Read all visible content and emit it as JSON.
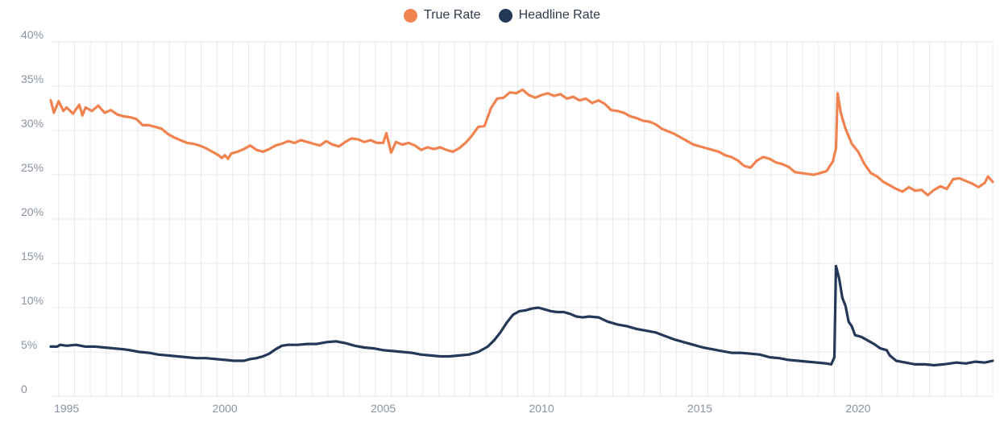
{
  "legend": {
    "true_rate": "True Rate",
    "headline_rate": "Headline Rate"
  },
  "colors": {
    "true_rate": "#f0834f",
    "headline_rate": "#253858",
    "grid": "#e6e8ec",
    "axis_text": "#8a93a1"
  },
  "chart_data": {
    "type": "line",
    "title": "",
    "xlabel": "",
    "ylabel": "",
    "x_range": [
      1994.5,
      2024.25
    ],
    "ylim": [
      0,
      40
    ],
    "grid": "on",
    "legend_position": "top-center",
    "x_ticks": [
      {
        "value": 1995,
        "label": "1995"
      },
      {
        "value": 2000,
        "label": "2000"
      },
      {
        "value": 2005,
        "label": "2005"
      },
      {
        "value": 2010,
        "label": "2010"
      },
      {
        "value": 2015,
        "label": "2015"
      },
      {
        "value": 2020,
        "label": "2020"
      }
    ],
    "y_ticks": [
      {
        "value": 0,
        "label": "0"
      },
      {
        "value": 5,
        "label": "5%"
      },
      {
        "value": 10,
        "label": "10%"
      },
      {
        "value": 15,
        "label": "15%"
      },
      {
        "value": 20,
        "label": "20%"
      },
      {
        "value": 25,
        "label": "25%"
      },
      {
        "value": 30,
        "label": "30%"
      },
      {
        "value": 35,
        "label": "35%"
      },
      {
        "value": 40,
        "label": "40%"
      }
    ],
    "series": [
      {
        "name": "True Rate",
        "color": "#f0834f",
        "points": [
          [
            1994.5,
            33.4
          ],
          [
            1994.6,
            32.0
          ],
          [
            1994.75,
            33.3
          ],
          [
            1994.9,
            32.2
          ],
          [
            1995.0,
            32.6
          ],
          [
            1995.2,
            31.9
          ],
          [
            1995.4,
            32.9
          ],
          [
            1995.5,
            31.7
          ],
          [
            1995.6,
            32.6
          ],
          [
            1995.8,
            32.2
          ],
          [
            1996.0,
            32.8
          ],
          [
            1996.2,
            32.0
          ],
          [
            1996.4,
            32.3
          ],
          [
            1996.6,
            31.8
          ],
          [
            1996.8,
            31.6
          ],
          [
            1997.0,
            31.5
          ],
          [
            1997.2,
            31.3
          ],
          [
            1997.4,
            30.6
          ],
          [
            1997.6,
            30.6
          ],
          [
            1997.8,
            30.4
          ],
          [
            1998.0,
            30.2
          ],
          [
            1998.2,
            29.6
          ],
          [
            1998.4,
            29.2
          ],
          [
            1998.6,
            28.9
          ],
          [
            1998.8,
            28.6
          ],
          [
            1999.0,
            28.5
          ],
          [
            1999.2,
            28.3
          ],
          [
            1999.4,
            28.0
          ],
          [
            1999.6,
            27.6
          ],
          [
            1999.8,
            27.2
          ],
          [
            1999.9,
            26.9
          ],
          [
            2000.0,
            27.2
          ],
          [
            2000.1,
            26.8
          ],
          [
            2000.2,
            27.4
          ],
          [
            2000.4,
            27.6
          ],
          [
            2000.6,
            27.9
          ],
          [
            2000.8,
            28.3
          ],
          [
            2001.0,
            27.8
          ],
          [
            2001.2,
            27.6
          ],
          [
            2001.4,
            27.9
          ],
          [
            2001.6,
            28.3
          ],
          [
            2001.8,
            28.5
          ],
          [
            2002.0,
            28.8
          ],
          [
            2002.2,
            28.6
          ],
          [
            2002.4,
            28.9
          ],
          [
            2002.6,
            28.7
          ],
          [
            2002.8,
            28.5
          ],
          [
            2003.0,
            28.3
          ],
          [
            2003.2,
            28.8
          ],
          [
            2003.4,
            28.4
          ],
          [
            2003.6,
            28.2
          ],
          [
            2003.8,
            28.7
          ],
          [
            2004.0,
            29.1
          ],
          [
            2004.2,
            29.0
          ],
          [
            2004.4,
            28.7
          ],
          [
            2004.6,
            28.9
          ],
          [
            2004.8,
            28.6
          ],
          [
            2005.0,
            28.6
          ],
          [
            2005.1,
            29.7
          ],
          [
            2005.25,
            27.5
          ],
          [
            2005.4,
            28.7
          ],
          [
            2005.6,
            28.4
          ],
          [
            2005.8,
            28.6
          ],
          [
            2006.0,
            28.3
          ],
          [
            2006.2,
            27.8
          ],
          [
            2006.4,
            28.1
          ],
          [
            2006.6,
            27.9
          ],
          [
            2006.8,
            28.1
          ],
          [
            2007.0,
            27.8
          ],
          [
            2007.2,
            27.6
          ],
          [
            2007.4,
            28.0
          ],
          [
            2007.6,
            28.6
          ],
          [
            2007.8,
            29.4
          ],
          [
            2008.0,
            30.4
          ],
          [
            2008.2,
            30.5
          ],
          [
            2008.4,
            32.5
          ],
          [
            2008.6,
            33.6
          ],
          [
            2008.8,
            33.7
          ],
          [
            2009.0,
            34.3
          ],
          [
            2009.2,
            34.2
          ],
          [
            2009.4,
            34.6
          ],
          [
            2009.6,
            34.0
          ],
          [
            2009.8,
            33.7
          ],
          [
            2010.0,
            34.0
          ],
          [
            2010.2,
            34.2
          ],
          [
            2010.4,
            33.9
          ],
          [
            2010.6,
            34.1
          ],
          [
            2010.8,
            33.6
          ],
          [
            2011.0,
            33.8
          ],
          [
            2011.2,
            33.4
          ],
          [
            2011.4,
            33.6
          ],
          [
            2011.6,
            33.1
          ],
          [
            2011.8,
            33.4
          ],
          [
            2012.0,
            33.0
          ],
          [
            2012.2,
            32.3
          ],
          [
            2012.4,
            32.2
          ],
          [
            2012.6,
            32.0
          ],
          [
            2012.8,
            31.6
          ],
          [
            2013.0,
            31.4
          ],
          [
            2013.2,
            31.1
          ],
          [
            2013.4,
            31.0
          ],
          [
            2013.6,
            30.7
          ],
          [
            2013.8,
            30.2
          ],
          [
            2014.0,
            29.9
          ],
          [
            2014.2,
            29.6
          ],
          [
            2014.4,
            29.2
          ],
          [
            2014.6,
            28.8
          ],
          [
            2014.8,
            28.4
          ],
          [
            2015.0,
            28.2
          ],
          [
            2015.2,
            28.0
          ],
          [
            2015.4,
            27.8
          ],
          [
            2015.6,
            27.6
          ],
          [
            2015.8,
            27.2
          ],
          [
            2016.0,
            27.0
          ],
          [
            2016.2,
            26.6
          ],
          [
            2016.4,
            26.0
          ],
          [
            2016.6,
            25.8
          ],
          [
            2016.8,
            26.6
          ],
          [
            2017.0,
            27.0
          ],
          [
            2017.2,
            26.8
          ],
          [
            2017.4,
            26.4
          ],
          [
            2017.6,
            26.2
          ],
          [
            2017.8,
            25.9
          ],
          [
            2018.0,
            25.3
          ],
          [
            2018.2,
            25.2
          ],
          [
            2018.4,
            25.1
          ],
          [
            2018.6,
            25.0
          ],
          [
            2018.8,
            25.2
          ],
          [
            2019.0,
            25.4
          ],
          [
            2019.2,
            26.5
          ],
          [
            2019.3,
            28.0
          ],
          [
            2019.35,
            34.2
          ],
          [
            2019.45,
            32.0
          ],
          [
            2019.6,
            30.2
          ],
          [
            2019.8,
            28.5
          ],
          [
            2020.0,
            27.6
          ],
          [
            2020.2,
            26.2
          ],
          [
            2020.4,
            25.2
          ],
          [
            2020.6,
            24.8
          ],
          [
            2020.8,
            24.2
          ],
          [
            2021.0,
            23.8
          ],
          [
            2021.2,
            23.4
          ],
          [
            2021.4,
            23.1
          ],
          [
            2021.6,
            23.6
          ],
          [
            2021.8,
            23.2
          ],
          [
            2022.0,
            23.3
          ],
          [
            2022.2,
            22.7
          ],
          [
            2022.4,
            23.3
          ],
          [
            2022.6,
            23.7
          ],
          [
            2022.8,
            23.4
          ],
          [
            2023.0,
            24.5
          ],
          [
            2023.2,
            24.6
          ],
          [
            2023.4,
            24.3
          ],
          [
            2023.6,
            24.0
          ],
          [
            2023.8,
            23.6
          ],
          [
            2024.0,
            24.1
          ],
          [
            2024.1,
            24.8
          ],
          [
            2024.25,
            24.2
          ]
        ]
      },
      {
        "name": "Headline Rate",
        "color": "#253858",
        "points": [
          [
            1994.5,
            5.6
          ],
          [
            1994.7,
            5.6
          ],
          [
            1994.8,
            5.8
          ],
          [
            1995.0,
            5.7
          ],
          [
            1995.3,
            5.8
          ],
          [
            1995.6,
            5.6
          ],
          [
            1995.9,
            5.6
          ],
          [
            1996.2,
            5.5
          ],
          [
            1996.5,
            5.4
          ],
          [
            1996.8,
            5.3
          ],
          [
            1997.0,
            5.2
          ],
          [
            1997.3,
            5.0
          ],
          [
            1997.6,
            4.9
          ],
          [
            1997.9,
            4.7
          ],
          [
            1998.2,
            4.6
          ],
          [
            1998.5,
            4.5
          ],
          [
            1998.8,
            4.4
          ],
          [
            1999.1,
            4.3
          ],
          [
            1999.4,
            4.3
          ],
          [
            1999.7,
            4.2
          ],
          [
            2000.0,
            4.1
          ],
          [
            2000.3,
            4.0
          ],
          [
            2000.6,
            4.0
          ],
          [
            2000.8,
            4.2
          ],
          [
            2001.0,
            4.3
          ],
          [
            2001.2,
            4.5
          ],
          [
            2001.4,
            4.8
          ],
          [
            2001.6,
            5.3
          ],
          [
            2001.8,
            5.7
          ],
          [
            2002.0,
            5.8
          ],
          [
            2002.3,
            5.8
          ],
          [
            2002.6,
            5.9
          ],
          [
            2002.9,
            5.9
          ],
          [
            2003.2,
            6.1
          ],
          [
            2003.5,
            6.2
          ],
          [
            2003.8,
            6.0
          ],
          [
            2004.1,
            5.7
          ],
          [
            2004.4,
            5.5
          ],
          [
            2004.7,
            5.4
          ],
          [
            2005.0,
            5.2
          ],
          [
            2005.3,
            5.1
          ],
          [
            2005.6,
            5.0
          ],
          [
            2005.9,
            4.9
          ],
          [
            2006.2,
            4.7
          ],
          [
            2006.5,
            4.6
          ],
          [
            2006.8,
            4.5
          ],
          [
            2007.1,
            4.5
          ],
          [
            2007.4,
            4.6
          ],
          [
            2007.7,
            4.7
          ],
          [
            2008.0,
            5.0
          ],
          [
            2008.3,
            5.6
          ],
          [
            2008.5,
            6.3
          ],
          [
            2008.7,
            7.2
          ],
          [
            2008.9,
            8.3
          ],
          [
            2009.1,
            9.2
          ],
          [
            2009.3,
            9.6
          ],
          [
            2009.5,
            9.7
          ],
          [
            2009.7,
            9.9
          ],
          [
            2009.9,
            10.0
          ],
          [
            2010.1,
            9.8
          ],
          [
            2010.3,
            9.6
          ],
          [
            2010.5,
            9.5
          ],
          [
            2010.7,
            9.5
          ],
          [
            2010.9,
            9.3
          ],
          [
            2011.1,
            9.0
          ],
          [
            2011.3,
            8.9
          ],
          [
            2011.5,
            9.0
          ],
          [
            2011.8,
            8.9
          ],
          [
            2012.1,
            8.4
          ],
          [
            2012.4,
            8.1
          ],
          [
            2012.7,
            7.9
          ],
          [
            2013.0,
            7.6
          ],
          [
            2013.3,
            7.4
          ],
          [
            2013.6,
            7.2
          ],
          [
            2013.9,
            6.8
          ],
          [
            2014.2,
            6.4
          ],
          [
            2014.5,
            6.1
          ],
          [
            2014.8,
            5.8
          ],
          [
            2015.1,
            5.5
          ],
          [
            2015.4,
            5.3
          ],
          [
            2015.7,
            5.1
          ],
          [
            2016.0,
            4.9
          ],
          [
            2016.3,
            4.9
          ],
          [
            2016.6,
            4.8
          ],
          [
            2016.9,
            4.7
          ],
          [
            2017.2,
            4.4
          ],
          [
            2017.5,
            4.3
          ],
          [
            2017.8,
            4.1
          ],
          [
            2018.1,
            4.0
          ],
          [
            2018.4,
            3.9
          ],
          [
            2018.7,
            3.8
          ],
          [
            2019.0,
            3.7
          ],
          [
            2019.15,
            3.6
          ],
          [
            2019.25,
            4.4
          ],
          [
            2019.3,
            14.7
          ],
          [
            2019.4,
            13.3
          ],
          [
            2019.5,
            11.1
          ],
          [
            2019.6,
            10.2
          ],
          [
            2019.7,
            8.4
          ],
          [
            2019.8,
            7.9
          ],
          [
            2019.9,
            6.9
          ],
          [
            2020.1,
            6.7
          ],
          [
            2020.3,
            6.3
          ],
          [
            2020.5,
            5.9
          ],
          [
            2020.7,
            5.4
          ],
          [
            2020.9,
            5.2
          ],
          [
            2021.0,
            4.6
          ],
          [
            2021.2,
            4.0
          ],
          [
            2021.5,
            3.8
          ],
          [
            2021.8,
            3.6
          ],
          [
            2022.1,
            3.6
          ],
          [
            2022.4,
            3.5
          ],
          [
            2022.7,
            3.6
          ],
          [
            2022.9,
            3.7
          ],
          [
            2023.1,
            3.8
          ],
          [
            2023.4,
            3.7
          ],
          [
            2023.7,
            3.9
          ],
          [
            2024.0,
            3.8
          ],
          [
            2024.25,
            4.0
          ]
        ]
      }
    ]
  }
}
